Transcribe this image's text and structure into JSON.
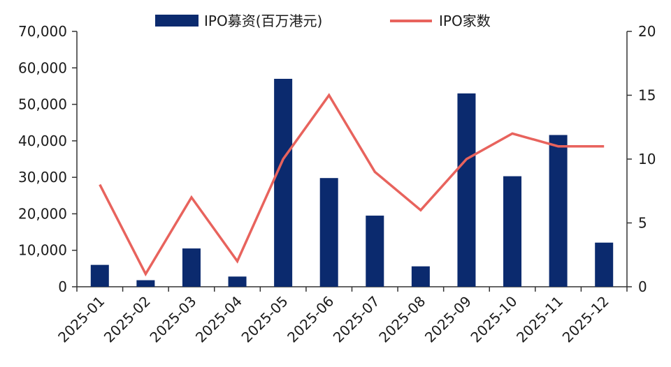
{
  "chart_data": {
    "type": "bar",
    "categories": [
      "2025-01",
      "2025-02",
      "2025-03",
      "2025-04",
      "2025-05",
      "2025-06",
      "2025-07",
      "2025-08",
      "2025-09",
      "2025-10",
      "2025-11",
      "2025-12"
    ],
    "series": [
      {
        "name": "IPO募资(百万港元)",
        "type": "bar",
        "axis": "left",
        "color": "#0b2a6e",
        "values": [
          6000,
          1800,
          10500,
          2800,
          57000,
          29800,
          19500,
          5600,
          53000,
          30300,
          41600,
          12100
        ]
      },
      {
        "name": "IPO家数",
        "type": "line",
        "axis": "right",
        "color": "#e8635d",
        "values": [
          8,
          1,
          7,
          2,
          10,
          15,
          9,
          6,
          10,
          12,
          11,
          11
        ]
      }
    ],
    "y_left": {
      "ylim": [
        0,
        70000
      ],
      "ticks": [
        0,
        10000,
        20000,
        30000,
        40000,
        50000,
        60000,
        70000
      ],
      "tick_labels": [
        "0",
        "10,000",
        "20,000",
        "30,000",
        "40,000",
        "50,000",
        "60,000",
        "70,000"
      ]
    },
    "y_right": {
      "ylim": [
        0,
        20
      ],
      "ticks": [
        0,
        5,
        10,
        15,
        20
      ],
      "tick_labels": [
        "0",
        "5",
        "10",
        "15",
        "20"
      ]
    },
    "grid": false,
    "legend": {
      "position": "top-center"
    },
    "title": "",
    "xlabel": "",
    "ylabel": ""
  }
}
